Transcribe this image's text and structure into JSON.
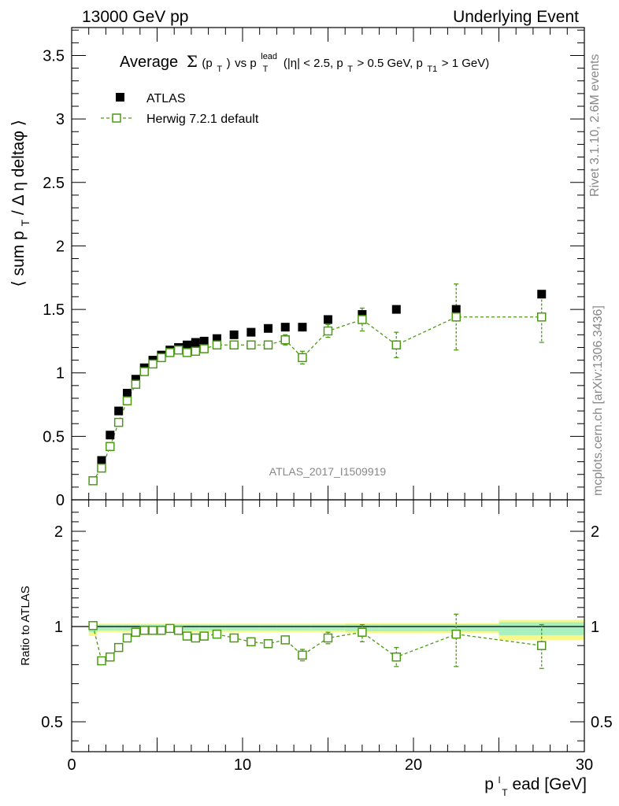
{
  "header": {
    "left": "13000 GeV pp",
    "right": "Underlying Event"
  },
  "side_labels": {
    "rivet": "Rivet 3.1.10,  2.6M events",
    "mcplots": "mcplots.cern.ch [arXiv:1306.3436]"
  },
  "chart_data": [
    {
      "type": "scatter",
      "panel": "main",
      "title": {
        "prefix": "Average",
        "sigma": "Σ",
        "pt_open": "(p",
        "pt_sub": "T",
        "pt_close": ")",
        "vs": " vs ",
        "plead_p": "p",
        "plead_sup": "lead",
        "plead_sub": "T",
        "cuts_a": " (|η| < 2.5, p",
        "cuts_a_sub": "T",
        "cuts_b": " > 0.5 GeV, p",
        "cuts_b_sub": "T1",
        "cuts_c": " > 1 GeV)"
      },
      "ylabel": "⟨ sum p",
      "ylabel_sub": "T",
      "ylabel_tail": " / Δ η deltaφ ⟩",
      "watermark": "ATLAS_2017_I1509919",
      "xlim": [
        0,
        30
      ],
      "ylim": [
        0,
        3.72
      ],
      "yticks": [
        "0",
        "0.5",
        "1",
        "1.5",
        "2",
        "2.5",
        "3",
        "3.5"
      ],
      "legend": [
        "ATLAS",
        "Herwig 7.2.1 default"
      ],
      "series": [
        {
          "name": "ATLAS",
          "x": [
            1.25,
            1.75,
            2.25,
            2.75,
            3.25,
            3.75,
            4.25,
            4.75,
            5.25,
            5.75,
            6.25,
            6.75,
            7.25,
            7.75,
            8.5,
            9.5,
            10.5,
            11.5,
            12.5,
            13.5,
            15,
            17,
            19,
            22.5,
            27.5
          ],
          "y": [
            0.15,
            0.31,
            0.51,
            0.7,
            0.84,
            0.95,
            1.04,
            1.1,
            1.14,
            1.18,
            1.2,
            1.22,
            1.24,
            1.25,
            1.27,
            1.3,
            1.32,
            1.35,
            1.36,
            1.36,
            1.42,
            1.46,
            1.5,
            1.5,
            1.62
          ]
        },
        {
          "name": "Herwig 7.2.1 default",
          "x": [
            1.25,
            1.75,
            2.25,
            2.75,
            3.25,
            3.75,
            4.25,
            4.75,
            5.25,
            5.75,
            6.25,
            6.75,
            7.25,
            7.75,
            8.5,
            9.5,
            10.5,
            11.5,
            12.5,
            13.5,
            15,
            17,
            19,
            22.5,
            27.5
          ],
          "y": [
            0.15,
            0.25,
            0.42,
            0.61,
            0.78,
            0.91,
            1.01,
            1.07,
            1.12,
            1.16,
            1.18,
            1.16,
            1.17,
            1.19,
            1.22,
            1.22,
            1.22,
            1.22,
            1.26,
            1.12,
            1.33,
            1.42,
            1.22,
            1.44,
            1.44
          ],
          "yerr": [
            0.01,
            0.01,
            0.01,
            0.01,
            0.01,
            0.01,
            0.01,
            0.01,
            0.01,
            0.01,
            0.01,
            0.01,
            0.01,
            0.01,
            0.01,
            0.01,
            0.02,
            0.02,
            0.04,
            0.05,
            0.05,
            0.09,
            0.1,
            0.26,
            0.2
          ]
        }
      ]
    },
    {
      "type": "scatter",
      "panel": "ratio",
      "ylabel": "Ratio to ATLAS",
      "xlabel_p": "p",
      "xlabel_sup": "l",
      "xlabel_sub": "T",
      "xlabel_tail": "ead [GeV]",
      "xlim": [
        0,
        30
      ],
      "ylim": [
        0.35,
        2.25
      ],
      "xticks": [
        "0",
        "10",
        "20",
        "30"
      ],
      "yticks": [
        "0.5",
        "1",
        "2"
      ],
      "band": {
        "x_edges": [
          1,
          1.5,
          2,
          2.5,
          3,
          3.5,
          4,
          4.5,
          5,
          5.5,
          6,
          6.5,
          7,
          7.5,
          8,
          9,
          10,
          11,
          12,
          13,
          14,
          16,
          18,
          20,
          25,
          30
        ],
        "half_width_inner": [
          0.03,
          0.02,
          0.02,
          0.02,
          0.02,
          0.02,
          0.02,
          0.02,
          0.02,
          0.02,
          0.02,
          0.02,
          0.02,
          0.02,
          0.02,
          0.02,
          0.02,
          0.02,
          0.02,
          0.02,
          0.02,
          0.025,
          0.025,
          0.025,
          0.045
        ],
        "half_width_outer": [
          0.05,
          0.03,
          0.03,
          0.03,
          0.03,
          0.03,
          0.03,
          0.03,
          0.03,
          0.03,
          0.03,
          0.03,
          0.03,
          0.03,
          0.03,
          0.03,
          0.03,
          0.03,
          0.03,
          0.03,
          0.03,
          0.035,
          0.035,
          0.035,
          0.07
        ]
      },
      "series": [
        {
          "name": "Herwig 7.2.1 default",
          "x": [
            1.25,
            1.75,
            2.25,
            2.75,
            3.25,
            3.75,
            4.25,
            4.75,
            5.25,
            5.75,
            6.25,
            6.75,
            7.25,
            7.75,
            8.5,
            9.5,
            10.5,
            11.5,
            12.5,
            13.5,
            15,
            17,
            19,
            22.5,
            27.5
          ],
          "y": [
            1.01,
            0.82,
            0.84,
            0.89,
            0.94,
            0.97,
            0.98,
            0.98,
            0.98,
            0.99,
            0.98,
            0.95,
            0.94,
            0.95,
            0.96,
            0.94,
            0.92,
            0.91,
            0.93,
            0.85,
            0.94,
            0.97,
            0.84,
            0.96,
            0.9
          ],
          "yerr": [
            0.01,
            0.01,
            0.01,
            0.01,
            0.01,
            0.01,
            0.01,
            0.01,
            0.01,
            0.01,
            0.01,
            0.01,
            0.01,
            0.01,
            0.01,
            0.01,
            0.01,
            0.02,
            0.02,
            0.03,
            0.03,
            0.05,
            0.05,
            0.17,
            0.12
          ]
        }
      ]
    }
  ],
  "colors": {
    "data": "#000000",
    "mc": "#4c9a14",
    "band_inner": "#a8f0c0",
    "band_outer": "#f8f888"
  }
}
